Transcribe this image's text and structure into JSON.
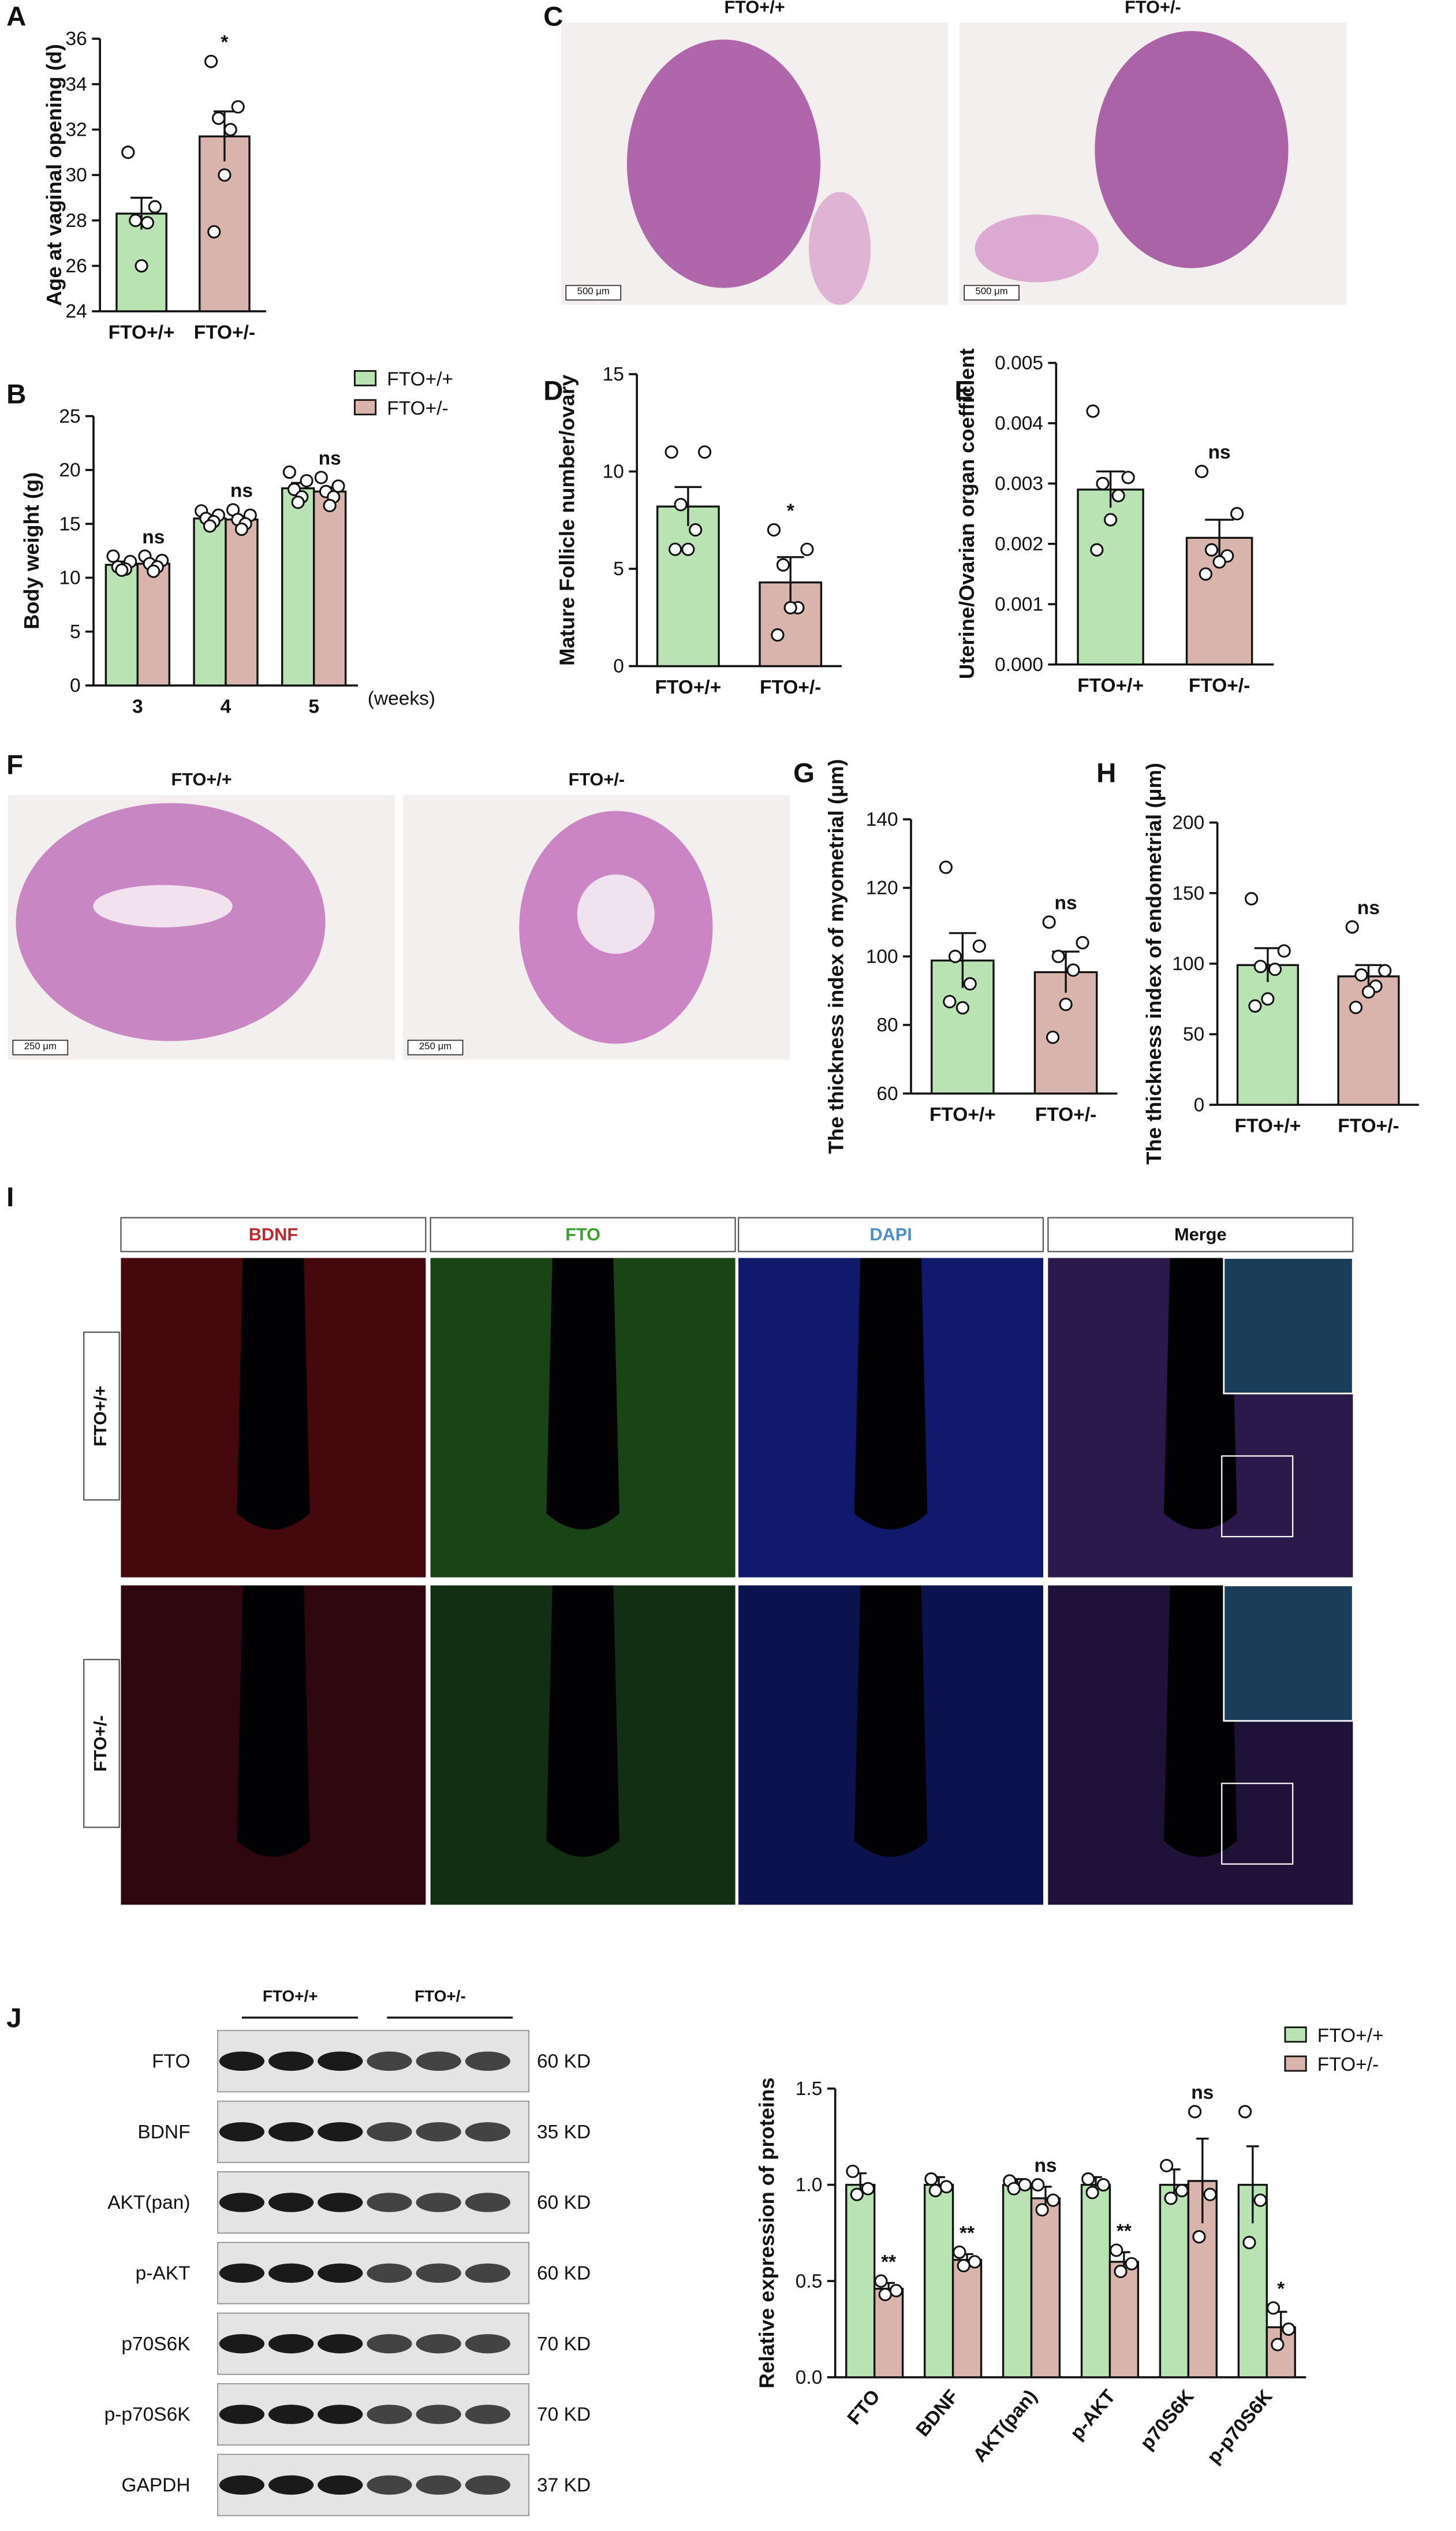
{
  "panels": [
    "A",
    "B",
    "C",
    "D",
    "E",
    "F",
    "G",
    "H",
    "I",
    "J"
  ],
  "images": {
    "C": {
      "labels": [
        "FTO+/+",
        "FTO+/-"
      ],
      "scale_bar": "500 μm"
    },
    "F": {
      "labels": [
        "FTO+/+",
        "FTO+/-"
      ],
      "scale_bar": "250 μm"
    },
    "I": {
      "columns": [
        {
          "label": "BDNF",
          "color": "#c0282a"
        },
        {
          "label": "FTO",
          "color": "#3aa02c"
        },
        {
          "label": "DAPI",
          "color": "#4a8ed0"
        },
        {
          "label": "Merge",
          "color": "#111111"
        }
      ],
      "rows": [
        "FTO+/+",
        "FTO+/-"
      ]
    },
    "J": {
      "groups": [
        "FTO+/+",
        "FTO+/-"
      ],
      "proteins": [
        "FTO",
        "BDNF",
        "AKT(pan)",
        "p-AKT",
        "p70S6K",
        "p-p70S6K",
        "GAPDH"
      ],
      "sizes": [
        "60 KD",
        "35 KD",
        "60 KD",
        "60 KD",
        "70 KD",
        "70 KD",
        "37 KD"
      ]
    }
  },
  "chart_data": [
    {
      "type": "bar",
      "ylabel": "Age at vaginal opening (d)",
      "categories": [
        "FTO+/+",
        "FTO+/-"
      ],
      "values": [
        28.3,
        31.7
      ],
      "errors": [
        0.7,
        1.1
      ],
      "points": [
        [
          31,
          28.6,
          28,
          27.9,
          26
        ],
        [
          35,
          33,
          32.5,
          32,
          30,
          27.5
        ]
      ],
      "annotations": [
        null,
        "*"
      ],
      "colors": [
        "#b9e3b3",
        "#d8b4ac"
      ],
      "ylim": [
        24,
        36
      ],
      "yticks": [
        24,
        26,
        28,
        30,
        32,
        34,
        36
      ]
    },
    {
      "type": "grouped_bar",
      "ylabel": "Body weight (g)",
      "xlabel": "(weeks)",
      "categories": [
        "3",
        "4",
        "5"
      ],
      "legend": "top-right",
      "series": [
        {
          "name": "FTO+/+",
          "color": "#b9e3b3",
          "values": [
            11.2,
            15.5,
            18.3
          ],
          "errors": [
            0.3,
            0.3,
            0.5
          ],
          "points": [
            [
              12,
              11.5,
              11,
              10.8,
              10.7
            ],
            [
              16.2,
              15.8,
              15.5,
              15.2,
              14.8
            ],
            [
              19.8,
              19,
              18.2,
              17.5,
              17
            ]
          ]
        },
        {
          "name": "FTO+/-",
          "color": "#d8b4ac",
          "values": [
            11.3,
            15.4,
            18.0
          ],
          "errors": [
            0.2,
            0.3,
            0.4
          ],
          "points": [
            [
              12,
              11.6,
              11.3,
              11,
              10.6
            ],
            [
              16.3,
              15.8,
              15.4,
              15,
              14.5
            ],
            [
              19.3,
              18.5,
              18,
              17.5,
              16.7
            ]
          ],
          "annotations": [
            "ns",
            "ns",
            "ns"
          ]
        }
      ],
      "ylim": [
        0,
        25
      ],
      "yticks": [
        0,
        5,
        10,
        15,
        20,
        25
      ]
    },
    {
      "type": "bar",
      "ylabel": "Mature Follicle number/ovary",
      "categories": [
        "FTO+/+",
        "FTO+/-"
      ],
      "values": [
        8.2,
        4.3
      ],
      "errors": [
        1.0,
        1.3
      ],
      "points": [
        [
          11,
          11,
          8.3,
          7,
          6,
          6
        ],
        [
          7,
          6,
          5.2,
          3,
          3,
          1.6
        ]
      ],
      "annotations": [
        null,
        "*"
      ],
      "colors": [
        "#b9e3b3",
        "#d8b4ac"
      ],
      "ylim": [
        0,
        15
      ],
      "yticks": [
        0,
        5,
        10,
        15
      ]
    },
    {
      "type": "bar",
      "ylabel": "Uterine/Ovarian organ coefficient",
      "categories": [
        "FTO+/+",
        "FTO+/-"
      ],
      "values": [
        0.0029,
        0.0021
      ],
      "errors": [
        0.0003,
        0.0003
      ],
      "points": [
        [
          0.0042,
          0.0031,
          0.003,
          0.0028,
          0.0024,
          0.0019
        ],
        [
          0.0032,
          0.0025,
          0.0019,
          0.0018,
          0.0017,
          0.0015
        ]
      ],
      "annotations": [
        null,
        "ns"
      ],
      "colors": [
        "#b9e3b3",
        "#d8b4ac"
      ],
      "ylim": [
        0,
        0.005
      ],
      "yticks": [
        {
          "value": 0,
          "label": "0.000"
        },
        {
          "value": 0.001,
          "label": "0.001"
        },
        {
          "value": 0.002,
          "label": "0.002"
        },
        {
          "value": 0.003,
          "label": "0.003"
        },
        {
          "value": 0.004,
          "label": "0.004"
        },
        {
          "value": 0.005,
          "label": "0.005"
        }
      ]
    },
    {
      "type": "bar",
      "ylabel": "The thickness index of myometrial (μm)",
      "categories": [
        "FTO+/+",
        "FTO+/-"
      ],
      "values": [
        98.8,
        95.4
      ],
      "errors": [
        8,
        6
      ],
      "points": [
        [
          126,
          103,
          100,
          92,
          85,
          86.8
        ],
        [
          110,
          104,
          100,
          96,
          86,
          76.4
        ]
      ],
      "annotations": [
        null,
        "ns"
      ],
      "colors": [
        "#b9e3b3",
        "#d8b4ac"
      ],
      "ylim": [
        60,
        140
      ],
      "yticks": [
        60,
        80,
        100,
        120,
        140
      ]
    },
    {
      "type": "bar",
      "ylabel": "The thickness index of endometrial (μm)",
      "categories": [
        "FTO+/+",
        "FTO+/-"
      ],
      "values": [
        99,
        91
      ],
      "errors": [
        12,
        8
      ],
      "points": [
        [
          146,
          109,
          98,
          96,
          75,
          70
        ],
        [
          126,
          95,
          92,
          84,
          80,
          69
        ]
      ],
      "annotations": [
        null,
        "ns"
      ],
      "colors": [
        "#b9e3b3",
        "#d8b4ac"
      ],
      "ylim": [
        0,
        200
      ],
      "yticks": [
        0,
        50,
        100,
        150,
        200
      ]
    },
    {
      "type": "grouped_bar",
      "ylabel": "Relative expression of proteins",
      "categories": [
        "FTO",
        "BDNF",
        "AKT(pan)",
        "p-AKT",
        "p70S6K",
        "p-p70S6K"
      ],
      "legend": "top-right",
      "rotate_labels": true,
      "series": [
        {
          "name": "FTO+/+",
          "color": "#b9e3b3",
          "values": [
            1.0,
            1.0,
            1.0,
            1.0,
            1.0,
            1.0
          ],
          "errors": [
            0.06,
            0.04,
            0.03,
            0.04,
            0.08,
            0.2
          ],
          "points": [
            [
              1.07,
              0.98,
              0.95
            ],
            [
              1.03,
              0.99,
              0.97
            ],
            [
              1.02,
              1.0,
              0.98
            ],
            [
              1.03,
              1.0,
              0.96
            ],
            [
              1.1,
              0.97,
              0.93
            ],
            [
              1.38,
              0.92,
              0.7
            ]
          ]
        },
        {
          "name": "FTO+/-",
          "color": "#d8b4ac",
          "values": [
            0.46,
            0.61,
            0.93,
            0.6,
            1.02,
            0.26
          ],
          "errors": [
            0.03,
            0.03,
            0.06,
            0.05,
            0.22,
            0.08
          ],
          "points": [
            [
              0.5,
              0.45,
              0.43
            ],
            [
              0.65,
              0.6,
              0.58
            ],
            [
              1.0,
              0.92,
              0.87
            ],
            [
              0.66,
              0.59,
              0.55
            ],
            [
              1.38,
              0.95,
              0.73
            ],
            [
              0.36,
              0.25,
              0.17
            ]
          ],
          "annotations": [
            "**",
            "**",
            "ns",
            "**",
            "ns",
            "*"
          ]
        }
      ],
      "ylim": [
        0,
        1.5
      ],
      "yticks": [
        {
          "value": 0,
          "label": "0.0"
        },
        {
          "value": 0.5,
          "label": "0.5"
        },
        {
          "value": 1.0,
          "label": "1.0"
        },
        {
          "value": 1.5,
          "label": "1.5"
        }
      ]
    }
  ]
}
